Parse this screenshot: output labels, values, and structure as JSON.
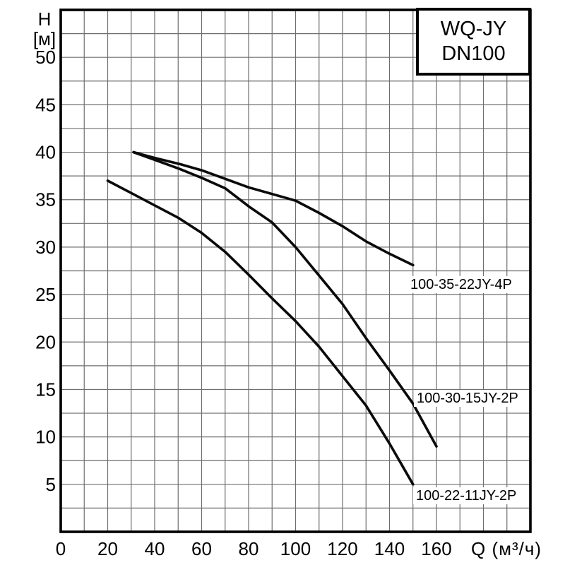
{
  "title_box": {
    "line1": "WQ-JY",
    "line2": "DN100"
  },
  "axes": {
    "y_title": "H",
    "y_unit": "[м]",
    "x_title": "Q (м³/ч)"
  },
  "colors": {
    "background": "#ffffff",
    "frame": "#000000",
    "grid": "#6e6e6e",
    "curve": "#0a0a0a"
  },
  "chart_data": {
    "type": "line",
    "title": "WQ-JY DN100",
    "xlabel": "Q (м³/ч)",
    "ylabel": "H [м]",
    "xlim": [
      0,
      200
    ],
    "ylim": [
      0,
      55
    ],
    "x_ticks": [
      0,
      20,
      40,
      60,
      80,
      100,
      120,
      140,
      160
    ],
    "y_ticks": [
      5,
      10,
      15,
      20,
      25,
      30,
      35,
      40,
      45,
      50
    ],
    "grid": {
      "x_step": 10,
      "y_step": 2.5,
      "on": true
    },
    "legend_position": "labels-next-to-curve-ends",
    "series": [
      {
        "name": "100-35-22JY-4P",
        "points": [
          [
            31,
            40
          ],
          [
            40,
            39.4
          ],
          [
            50,
            38.8
          ],
          [
            60,
            38.1
          ],
          [
            70,
            37.2
          ],
          [
            80,
            36.3
          ],
          [
            90,
            35.6
          ],
          [
            100,
            34.9
          ],
          [
            110,
            33.6
          ],
          [
            120,
            32.2
          ],
          [
            130,
            30.6
          ],
          [
            140,
            29.3
          ],
          [
            150,
            28.1
          ]
        ]
      },
      {
        "name": "100-30-15JY-2P",
        "points": [
          [
            31,
            40
          ],
          [
            40,
            39.2
          ],
          [
            50,
            38.3
          ],
          [
            60,
            37.3
          ],
          [
            70,
            36.2
          ],
          [
            80,
            34.3
          ],
          [
            90,
            32.6
          ],
          [
            100,
            30
          ],
          [
            110,
            27
          ],
          [
            120,
            24
          ],
          [
            130,
            20.4
          ],
          [
            140,
            17
          ],
          [
            150,
            13.5
          ],
          [
            160,
            9
          ]
        ]
      },
      {
        "name": "100-22-11JY-2P",
        "points": [
          [
            20,
            37
          ],
          [
            30,
            35.7
          ],
          [
            40,
            34.4
          ],
          [
            50,
            33.1
          ],
          [
            60,
            31.5
          ],
          [
            70,
            29.5
          ],
          [
            80,
            27.1
          ],
          [
            90,
            24.6
          ],
          [
            100,
            22.2
          ],
          [
            110,
            19.5
          ],
          [
            120,
            16.4
          ],
          [
            130,
            13.3
          ],
          [
            140,
            9.3
          ],
          [
            150,
            5
          ]
        ]
      }
    ]
  }
}
